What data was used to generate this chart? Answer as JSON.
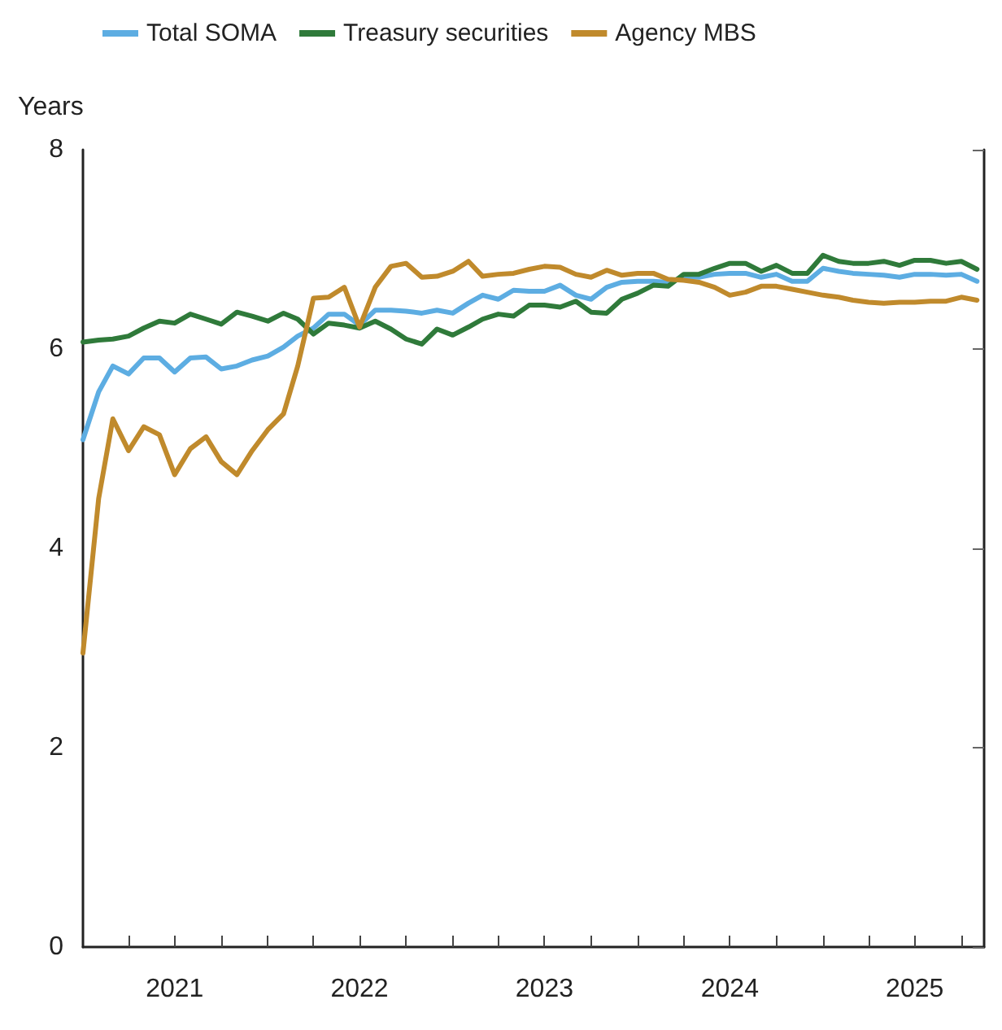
{
  "chart_data": {
    "type": "line",
    "ylabel": "Years",
    "x": [
      "2021-01",
      "2021-02",
      "2021-03",
      "2021-04",
      "2021-05",
      "2021-06",
      "2021-07",
      "2021-08",
      "2021-09",
      "2021-10",
      "2021-11",
      "2021-12",
      "2022-01",
      "2022-02",
      "2022-03",
      "2022-04",
      "2022-05",
      "2022-06",
      "2022-07",
      "2022-08",
      "2022-09",
      "2022-10",
      "2022-11",
      "2022-12",
      "2023-01",
      "2023-02",
      "2023-03",
      "2023-04",
      "2023-05",
      "2023-06",
      "2023-07",
      "2023-08",
      "2023-09",
      "2023-10",
      "2023-11",
      "2023-12",
      "2024-01",
      "2024-02",
      "2024-03",
      "2024-04",
      "2024-05",
      "2024-06",
      "2024-07",
      "2024-08",
      "2024-09",
      "2024-10",
      "2024-11",
      "2024-12",
      "2025-01",
      "2025-02",
      "2025-03",
      "2025-04",
      "2025-05",
      "2025-06",
      "2025-07",
      "2025-08",
      "2025-09",
      "2025-10",
      "2025-11"
    ],
    "series": [
      {
        "name": "Total SOMA",
        "color": "#5dade2",
        "values": [
          5.09,
          5.57,
          5.83,
          5.75,
          5.91,
          5.91,
          5.77,
          5.91,
          5.92,
          5.8,
          5.83,
          5.89,
          5.93,
          6.02,
          6.13,
          6.21,
          6.35,
          6.35,
          6.24,
          6.39,
          6.39,
          6.38,
          6.36,
          6.39,
          6.36,
          6.46,
          6.54,
          6.5,
          6.59,
          6.58,
          6.58,
          6.64,
          6.54,
          6.5,
          6.62,
          6.67,
          6.68,
          6.68,
          6.67,
          6.72,
          6.72,
          6.75,
          6.76,
          6.76,
          6.72,
          6.75,
          6.68,
          6.68,
          6.81,
          6.78,
          6.76,
          6.75,
          6.74,
          6.72,
          6.75,
          6.75,
          6.74,
          6.75,
          6.68
        ]
      },
      {
        "name": "Treasury securities",
        "color": "#2f7a3a",
        "values": [
          6.07,
          6.09,
          6.1,
          6.13,
          6.21,
          6.28,
          6.26,
          6.35,
          6.3,
          6.25,
          6.37,
          6.33,
          6.28,
          6.36,
          6.3,
          6.15,
          6.26,
          6.24,
          6.21,
          6.28,
          6.2,
          6.1,
          6.05,
          6.2,
          6.14,
          6.22,
          6.3,
          6.35,
          6.33,
          6.44,
          6.44,
          6.42,
          6.48,
          6.37,
          6.36,
          6.5,
          6.56,
          6.64,
          6.63,
          6.75,
          6.75,
          6.81,
          6.86,
          6.86,
          6.78,
          6.84,
          6.76,
          6.76,
          6.94,
          6.88,
          6.86,
          6.86,
          6.88,
          6.84,
          6.89,
          6.89,
          6.86,
          6.88,
          6.8
        ]
      },
      {
        "name": "Agency MBS",
        "color": "#c08a2c",
        "values": [
          2.95,
          4.5,
          5.3,
          4.98,
          5.22,
          5.14,
          4.74,
          5.0,
          5.12,
          4.87,
          4.74,
          4.98,
          5.19,
          5.35,
          5.83,
          6.51,
          6.52,
          6.62,
          6.22,
          6.62,
          6.83,
          6.86,
          6.72,
          6.73,
          6.78,
          6.88,
          6.73,
          6.75,
          6.76,
          6.8,
          6.83,
          6.82,
          6.75,
          6.72,
          6.79,
          6.74,
          6.76,
          6.76,
          6.7,
          6.69,
          6.67,
          6.62,
          6.54,
          6.57,
          6.63,
          6.63,
          6.6,
          6.57,
          6.54,
          6.52,
          6.49,
          6.47,
          6.46,
          6.47,
          6.47,
          6.48,
          6.48,
          6.52,
          6.49
        ]
      }
    ],
    "xlim": [
      "2021-01-01",
      "2025-11-15"
    ],
    "xticks": [
      {
        "value": "2021-04-01",
        "label": null
      },
      {
        "value": "2021-07-01",
        "label": "2021"
      },
      {
        "value": "2021-10-01",
        "label": null
      },
      {
        "value": "2022-01-01",
        "label": null
      },
      {
        "value": "2022-04-01",
        "label": null
      },
      {
        "value": "2022-07-01",
        "label": "2022"
      },
      {
        "value": "2022-10-01",
        "label": null
      },
      {
        "value": "2023-01-01",
        "label": null
      },
      {
        "value": "2023-04-01",
        "label": null
      },
      {
        "value": "2023-07-01",
        "label": "2023"
      },
      {
        "value": "2023-10-01",
        "label": null
      },
      {
        "value": "2024-01-01",
        "label": null
      },
      {
        "value": "2024-04-01",
        "label": null
      },
      {
        "value": "2024-07-01",
        "label": "2024"
      },
      {
        "value": "2024-10-01",
        "label": null
      },
      {
        "value": "2025-01-01",
        "label": null
      },
      {
        "value": "2025-04-01",
        "label": null
      },
      {
        "value": "2025-07-01",
        "label": "2025"
      },
      {
        "value": "2025-10-01",
        "label": null
      }
    ],
    "ylim": [
      0,
      8
    ],
    "yticks": [
      0,
      2,
      4,
      6,
      8
    ],
    "grid": false,
    "legend": "top left",
    "marker": "none",
    "line_style": "solid"
  }
}
